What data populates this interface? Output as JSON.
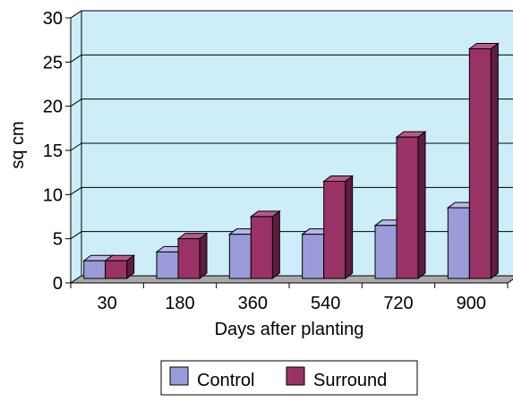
{
  "chart_data": {
    "type": "bar",
    "style": "3d-clustered-column",
    "categories": [
      "30",
      "180",
      "360",
      "540",
      "720",
      "900"
    ],
    "series": [
      {
        "name": "Control",
        "values": [
          2,
          3,
          5,
          5,
          6,
          8
        ]
      },
      {
        "name": "Surround",
        "values": [
          2,
          4.5,
          7,
          11,
          16,
          26
        ]
      }
    ],
    "xlabel": "Days after planting",
    "ylabel": "sq cm",
    "ylim": [
      0,
      30
    ],
    "yticks": [
      "0",
      "5",
      "10",
      "15",
      "20",
      "25",
      "30"
    ],
    "grid": true,
    "legend": "bottom",
    "colors": {
      "wall": "#cdeef9",
      "floor": "#a9a9a9",
      "control_front": "#9b9bd9",
      "control_top": "#b8b8ea",
      "control_side": "#6a6aa8",
      "surround_front": "#993366",
      "surround_top": "#b85a88",
      "surround_side": "#5e1c3e"
    }
  }
}
